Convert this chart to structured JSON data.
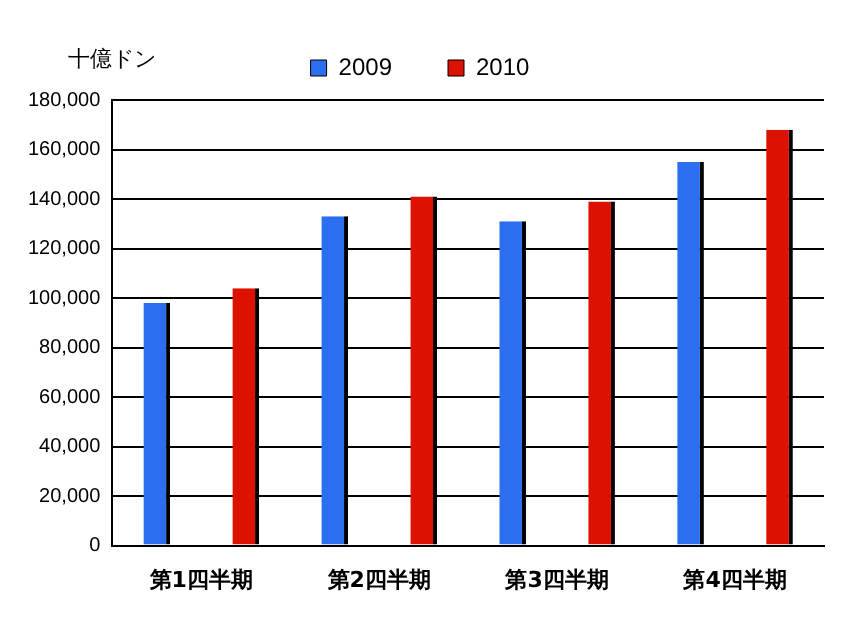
{
  "chart_data": {
    "type": "bar",
    "ylabel": "十億ドン",
    "categories": [
      "第1四半期",
      "第2四半期",
      "第3四半期",
      "第4四半期"
    ],
    "series": [
      {
        "name": "2009",
        "color": "#2b6ff0",
        "values": [
          98000,
          133000,
          131000,
          155000
        ]
      },
      {
        "name": "2010",
        "color": "#dd1100",
        "values": [
          104000,
          141000,
          139000,
          168000
        ]
      }
    ],
    "ylim": [
      0,
      180000
    ],
    "yticks": [
      {
        "value": 0,
        "label": "0"
      },
      {
        "value": 20000,
        "label": "20,000"
      },
      {
        "value": 40000,
        "label": "40,000"
      },
      {
        "value": 60000,
        "label": "60,000"
      },
      {
        "value": 80000,
        "label": "80,000"
      },
      {
        "value": 100000,
        "label": "100,000"
      },
      {
        "value": 120000,
        "label": "120,000"
      },
      {
        "value": 140000,
        "label": "140,000"
      },
      {
        "value": 160000,
        "label": "160,000"
      },
      {
        "value": 180000,
        "label": "180,000"
      }
    ],
    "grid": "y",
    "legend": "top"
  }
}
